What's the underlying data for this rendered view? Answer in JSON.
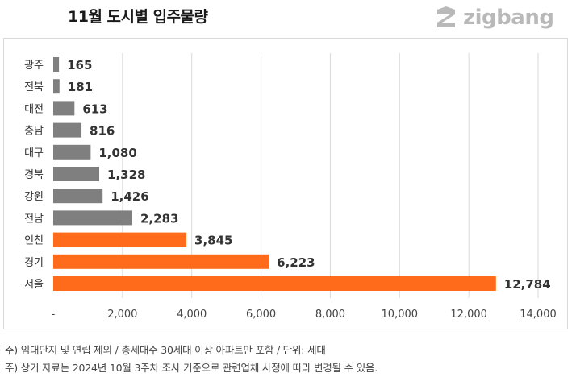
{
  "title": "11월 도시별 입주물량",
  "logo_text": "zigbang",
  "notes": [
    "주) 임대단지 및 연립 제외 / 총세대수 30세대 이상 아파트만 포함 / 단위: 세대",
    "주) 상기 자료는 2024년 10월 3주차 조사 기준으로 관련업체 사정에 따라 변경될 수 있음."
  ],
  "colors": {
    "gray_bar": "#7f7f7f",
    "highlight_bar": "#ff6b1a",
    "grid": "#d9d9d9",
    "logo": "#b9b9b9"
  },
  "chart_data": {
    "type": "bar",
    "orientation": "horizontal",
    "title": "11월 도시별 입주물량",
    "categories": [
      "광주",
      "전북",
      "대전",
      "충남",
      "대구",
      "경북",
      "강원",
      "전남",
      "인천",
      "경기",
      "서울"
    ],
    "values": [
      165,
      181,
      613,
      816,
      1080,
      1328,
      1426,
      2283,
      3845,
      6223,
      12784
    ],
    "value_labels": [
      "165",
      "181",
      "613",
      "816",
      "1,080",
      "1,328",
      "1,426",
      "2,283",
      "3,845",
      "6,223",
      "12,784"
    ],
    "highlighted": [
      "인천",
      "경기",
      "서울"
    ],
    "xlim": [
      0,
      14000
    ],
    "xticks": [
      0,
      2000,
      4000,
      6000,
      8000,
      10000,
      12000,
      14000
    ],
    "xtick_labels": [
      "-",
      "2,000",
      "4,000",
      "6,000",
      "8,000",
      "10,000",
      "12,000",
      "14,000"
    ],
    "grid": true,
    "legend": false
  }
}
